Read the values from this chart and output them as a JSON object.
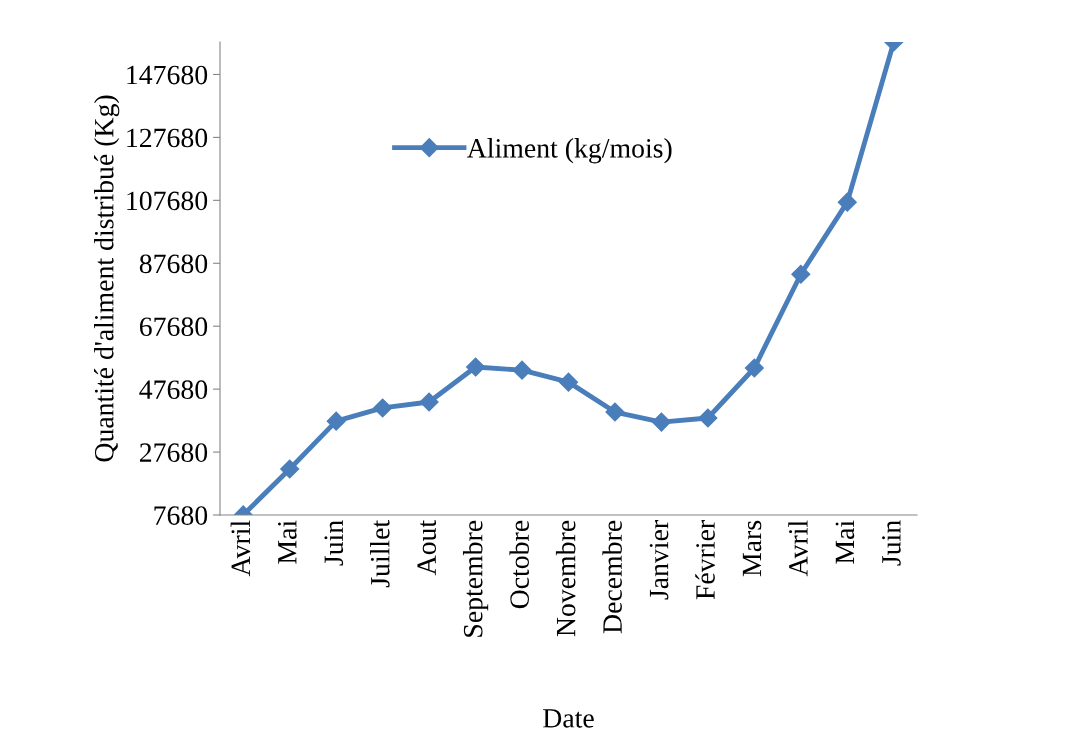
{
  "chart_data": {
    "type": "line",
    "xlabel": "Date",
    "ylabel": "Quantité d'aliment distribué (Kg)",
    "categories": [
      "Avril",
      "Mai",
      "Juin",
      "Juillet",
      "Aout",
      "Septembre",
      "Octobre",
      "Novembre",
      "Decembre",
      "Janvier",
      "Février",
      "Mars",
      "Avril",
      "Mai",
      "Juin"
    ],
    "series": [
      {
        "name": "Aliment (kg/mois)",
        "color": "#4a7ebb",
        "values": [
          7700,
          22300,
          37500,
          41700,
          43600,
          54700,
          53700,
          49900,
          40400,
          37200,
          38500,
          54400,
          84200,
          107100,
          158000
        ]
      }
    ],
    "ylim": [
      7680,
      158000
    ],
    "yticks": [
      7680,
      27680,
      47680,
      67680,
      87680,
      107680,
      127680,
      147680
    ],
    "marker": "diamond",
    "line_style": "solid",
    "grid": false,
    "legend": "top"
  }
}
